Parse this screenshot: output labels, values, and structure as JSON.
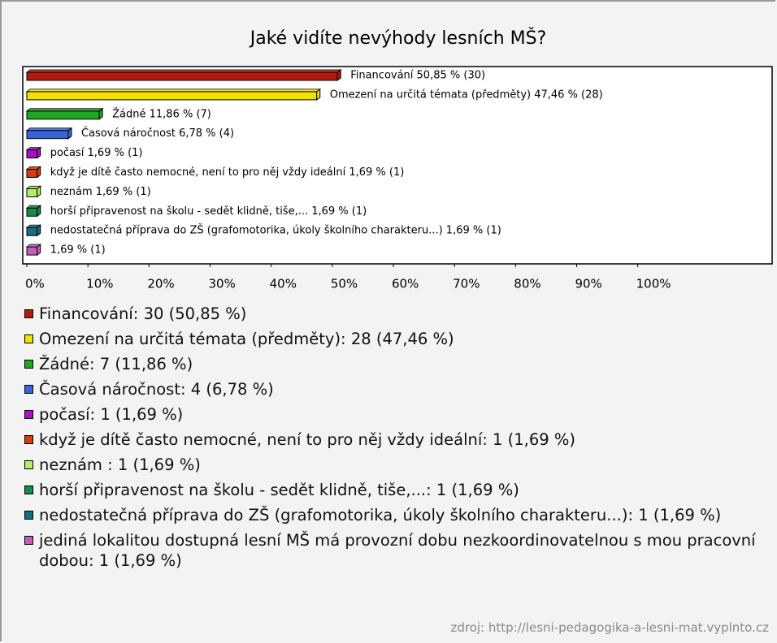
{
  "chart_data": {
    "type": "bar",
    "orientation": "horizontal",
    "title": "Jaké vidíte nevýhody lesních MŠ?",
    "values": [
      50.85,
      47.46,
      11.86,
      6.78,
      1.69,
      1.69,
      1.69,
      1.69,
      1.69,
      1.69
    ],
    "value_labels": [
      "Financování 50,85 % (30)",
      "Omezení na určitá témata (předměty) 47,46 % (28)",
      "Žádné 11,86 % (7)",
      "Časová náročnost 6,78 % (4)",
      "počasí 1,69 % (1)",
      "když je dítě často nemocné, není to pro něj vždy ideální 1,69 % (1)",
      "neznám  1,69 % (1)",
      "horší připravenost na školu - sedět klidně, tiše,... 1,69 % (1)",
      "nedostatečná příprava do ZŠ (grafomotorika, úkoly školního charakteru...) 1,69 % (1)",
      "1,69 % (1)"
    ],
    "colors": [
      "#b31b0f",
      "#f2e200",
      "#1fa71f",
      "#3a63d8",
      "#a812c4",
      "#d93a10",
      "#b5ee6a",
      "#138a4a",
      "#15707e",
      "#c060b8"
    ],
    "legend": [
      "Financování: 30 (50,85 %)",
      "Omezení na určitá témata (předměty): 28 (47,46 %)",
      "Žádné: 7 (11,86 %)",
      "Časová náročnost: 4 (6,78 %)",
      "počasí: 1 (1,69 %)",
      "když je dítě často nemocné, není to pro něj vždy ideální: 1 (1,69 %)",
      "neznám : 1 (1,69 %)",
      "horší připravenost na školu - sedět klidně, tiše,...: 1 (1,69 %)",
      "nedostatečná příprava do ZŠ (grafomotorika, úkoly školního charakteru...): 1 (1,69 %)",
      "jediná lokalitou dostupná lesní MŠ má provozní dobu nezkoordinovatelnou s mou pracovní dobou: 1 (1,69 %)"
    ],
    "xlim": [
      0,
      122
    ],
    "xticks": [
      {
        "value": 0,
        "label": "0%"
      },
      {
        "value": 10,
        "label": "10%"
      },
      {
        "value": 20,
        "label": "20%"
      },
      {
        "value": 30,
        "label": "30%"
      },
      {
        "value": 40,
        "label": "40%"
      },
      {
        "value": 50,
        "label": "50%"
      },
      {
        "value": 60,
        "label": "60%"
      },
      {
        "value": 70,
        "label": "70%"
      },
      {
        "value": 80,
        "label": "80%"
      },
      {
        "value": 90,
        "label": "90%"
      },
      {
        "value": 100,
        "label": "100%"
      }
    ],
    "source": "zdroj: http://lesni-pedagogika-a-lesni-mat.vyplnto.cz"
  }
}
